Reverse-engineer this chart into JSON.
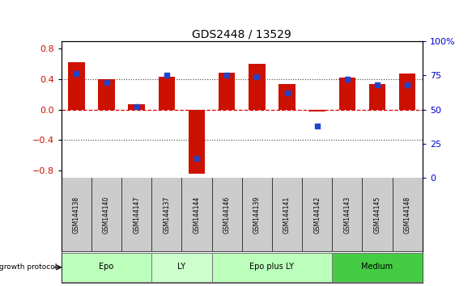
{
  "title": "GDS2448 / 13529",
  "samples": [
    "GSM144138",
    "GSM144140",
    "GSM144147",
    "GSM144137",
    "GSM144144",
    "GSM144146",
    "GSM144139",
    "GSM144141",
    "GSM144142",
    "GSM144143",
    "GSM144145",
    "GSM144148"
  ],
  "log2_ratio": [
    0.62,
    0.4,
    0.07,
    0.43,
    -0.85,
    0.48,
    0.6,
    0.33,
    -0.03,
    0.42,
    0.33,
    0.47
  ],
  "percentile_rank": [
    76,
    70,
    52,
    75,
    14,
    75,
    74,
    62,
    38,
    72,
    68,
    68
  ],
  "groups": [
    {
      "label": "Epo",
      "start": 0,
      "end": 3,
      "color": "#bbffbb"
    },
    {
      "label": "LY",
      "start": 3,
      "end": 5,
      "color": "#ccffcc"
    },
    {
      "label": "Epo plus LY",
      "start": 5,
      "end": 9,
      "color": "#bbffbb"
    },
    {
      "label": "Medium",
      "start": 9,
      "end": 12,
      "color": "#44cc44"
    }
  ],
  "ylim": [
    -0.9,
    0.9
  ],
  "yticks": [
    -0.8,
    -0.4,
    0.0,
    0.4,
    0.8
  ],
  "right_yticks": [
    0,
    25,
    50,
    75,
    100
  ],
  "bar_color": "#cc1100",
  "dot_color": "#2244cc",
  "zero_line_color": "#dd0000",
  "grid_color": "#444444",
  "bg_color": "#ffffff",
  "title_color": "#000000",
  "title_fontsize": 10,
  "label_bg": "#cccccc"
}
